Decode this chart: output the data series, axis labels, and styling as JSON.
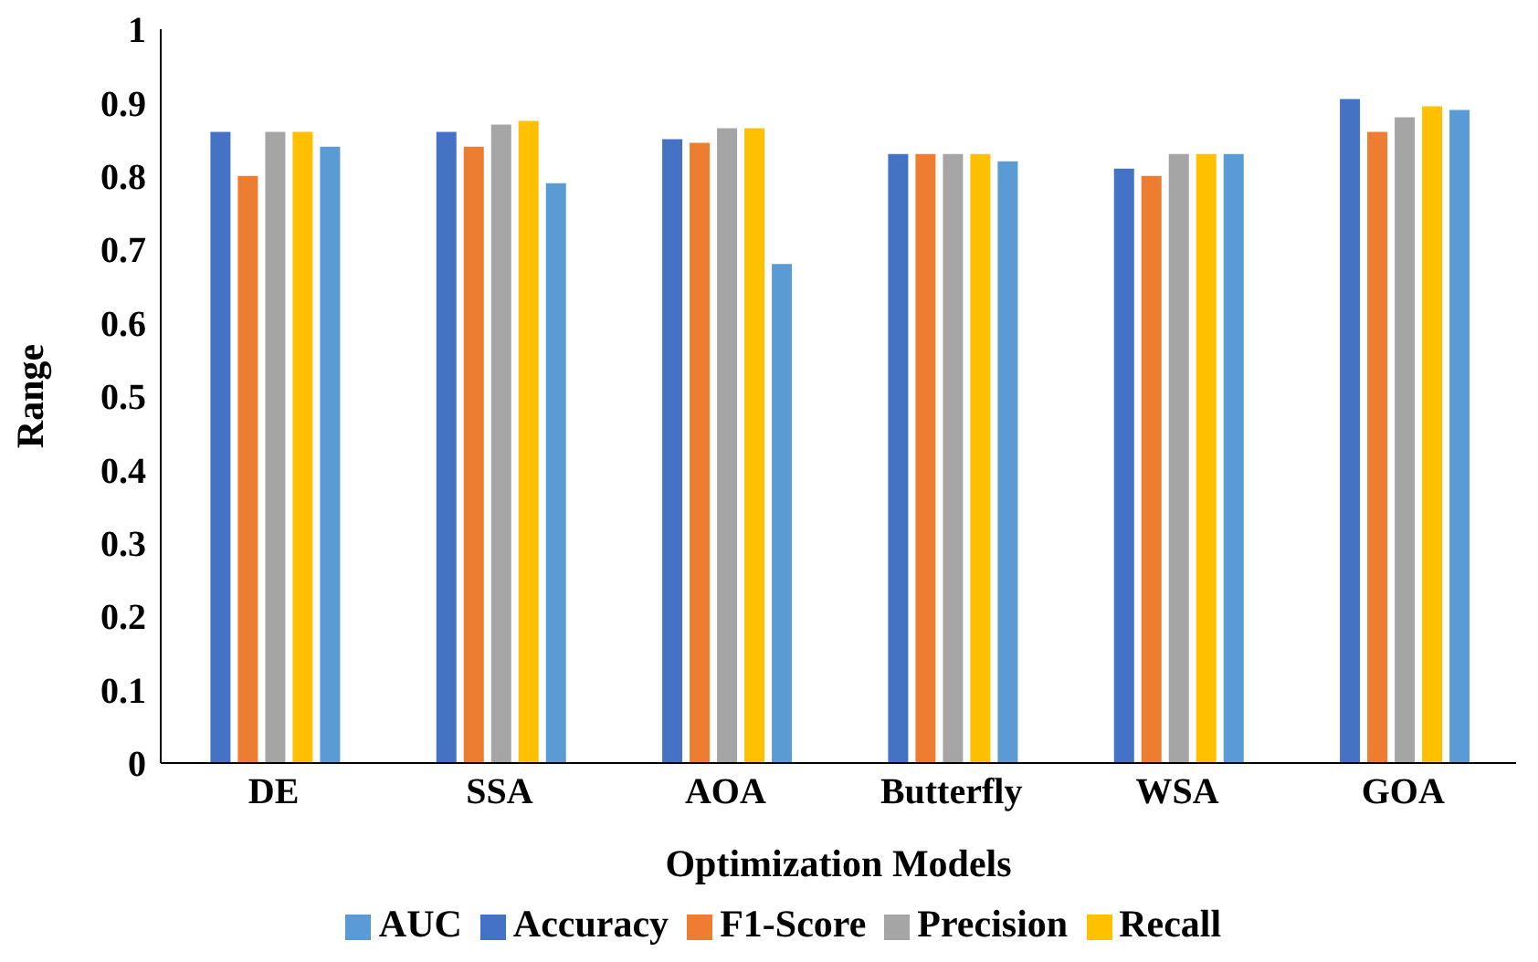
{
  "chart_data": {
    "type": "bar",
    "xlabel": "Optimization Models",
    "ylabel": "Range",
    "categories": [
      "DE",
      "SSA",
      "AOA",
      "Butterfly",
      "WSA",
      "GOA"
    ],
    "series": [
      {
        "name": "Accuracy",
        "color": "#4472c4",
        "values": [
          0.86,
          0.86,
          0.85,
          0.83,
          0.81,
          0.905
        ]
      },
      {
        "name": "F1-Score",
        "color": "#ed7d31",
        "values": [
          0.8,
          0.84,
          0.845,
          0.83,
          0.8,
          0.86
        ]
      },
      {
        "name": "Precision",
        "color": "#a5a5a5",
        "values": [
          0.86,
          0.87,
          0.865,
          0.83,
          0.83,
          0.88
        ]
      },
      {
        "name": "Recall",
        "color": "#ffc000",
        "values": [
          0.86,
          0.875,
          0.865,
          0.83,
          0.83,
          0.895
        ]
      },
      {
        "name": "AUC",
        "color": "#5b9bd5",
        "values": [
          0.84,
          0.79,
          0.68,
          0.82,
          0.83,
          0.89
        ]
      }
    ],
    "ylim": [
      0,
      1
    ],
    "yticks": [
      0,
      0.1,
      0.2,
      0.3,
      0.4,
      0.5,
      0.6,
      0.7,
      0.8,
      0.9,
      1
    ],
    "grid": false,
    "legend": "bottom"
  }
}
